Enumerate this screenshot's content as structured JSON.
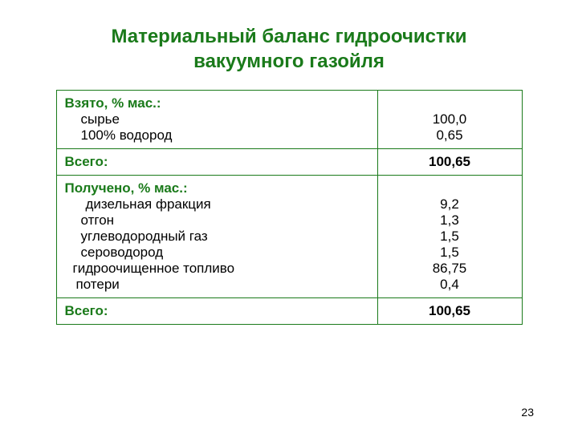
{
  "title_line1": "Материальный баланс гидроочистки",
  "title_line2": "вакуумного газойля",
  "title_color": "#1a7a1a",
  "title_fontsize": 24,
  "table": {
    "border_color": "#1a7a1a",
    "header_color": "#1a7a1a",
    "text_color": "#000000",
    "label_col_width": 400,
    "value_col_width": 180,
    "body_fontsize": 17,
    "header_fontsize": 17,
    "sections": [
      {
        "header": "Взято, % мас.:",
        "items": [
          {
            "label": "сырье",
            "value": "100,0"
          },
          {
            "label": "100% водород",
            "value": "0,65"
          }
        ],
        "total_label": "Всего:",
        "total_value": "100,65"
      },
      {
        "header": "Получено, % мас.:",
        "items": [
          {
            "label": "дизельная фракция",
            "value": "9,2"
          },
          {
            "label": "отгон",
            "value": "1,3"
          },
          {
            "label": "углеводородный газ",
            "value": "1,5"
          },
          {
            "label": "сероводород",
            "value": "1,5"
          },
          {
            "label": "гидроочищенное топливо",
            "value": "86,75",
            "indent": "less"
          },
          {
            "label": "потери",
            "value": "0,4",
            "indent": "less"
          }
        ],
        "total_label": "Всего:",
        "total_value": "100,65"
      }
    ]
  },
  "page_number": "23",
  "page_number_fontsize": 14,
  "page_number_color": "#000000"
}
